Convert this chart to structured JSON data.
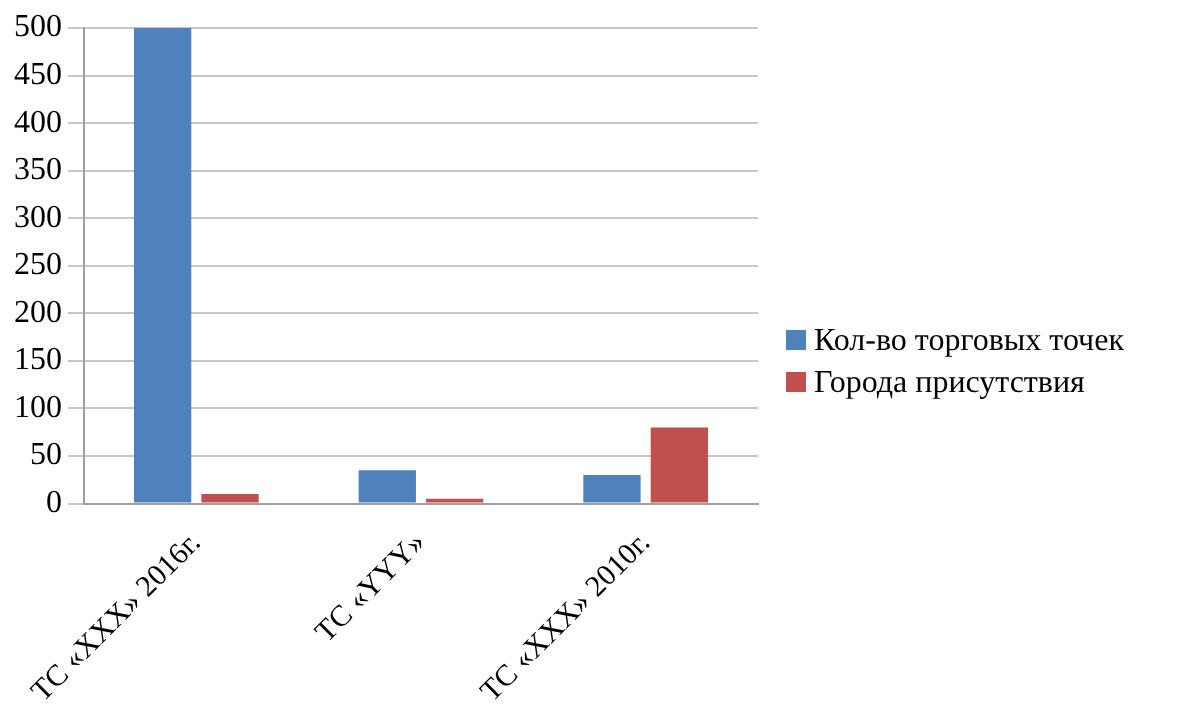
{
  "chart_data": {
    "type": "bar",
    "categories": [
      "ТС «XXX» 2016г.",
      "ТС «YYY»",
      "ТС «XXX» 2010г."
    ],
    "series": [
      {
        "name": "Кол-во торговых точек",
        "color": "#4f81bd",
        "values": [
          500,
          35,
          30
        ]
      },
      {
        "name": "Города присутствия",
        "color": "#c0504d",
        "values": [
          10,
          5,
          80
        ]
      }
    ],
    "ylim": [
      0,
      500
    ],
    "yticks": [
      0,
      50,
      100,
      150,
      200,
      250,
      300,
      350,
      400,
      450,
      500
    ],
    "grid": "y",
    "legend": "right"
  }
}
